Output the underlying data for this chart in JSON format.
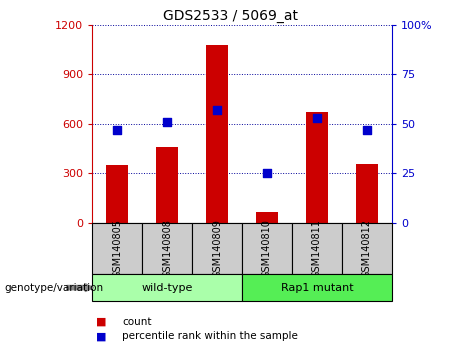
{
  "title": "GDS2533 / 5069_at",
  "samples": [
    "GSM140805",
    "GSM140808",
    "GSM140809",
    "GSM140810",
    "GSM140811",
    "GSM140812"
  ],
  "counts": [
    350,
    460,
    1075,
    65,
    670,
    360
  ],
  "percentile_ranks": [
    47,
    51,
    57,
    25,
    53,
    47
  ],
  "groups": [
    {
      "label": "wild-type",
      "indices": [
        0,
        1,
        2
      ],
      "color": "#aaffaa"
    },
    {
      "label": "Rap1 mutant",
      "indices": [
        3,
        4,
        5
      ],
      "color": "#55ee55"
    }
  ],
  "left_ylim": [
    0,
    1200
  ],
  "right_ylim": [
    0,
    100
  ],
  "left_yticks": [
    0,
    300,
    600,
    900,
    1200
  ],
  "right_yticks": [
    0,
    25,
    50,
    75,
    100
  ],
  "left_ytick_labels": [
    "0",
    "300",
    "600",
    "900",
    "1200"
  ],
  "right_ytick_labels": [
    "0",
    "25",
    "50",
    "75",
    "100%"
  ],
  "bar_color": "#cc0000",
  "dot_color": "#0000cc",
  "grid_color": "#000099",
  "sample_box_color": "#cccccc",
  "group_border_color": "#000000",
  "right_yaxis_top_label": "100%",
  "right_yaxis_zero_label": "0"
}
